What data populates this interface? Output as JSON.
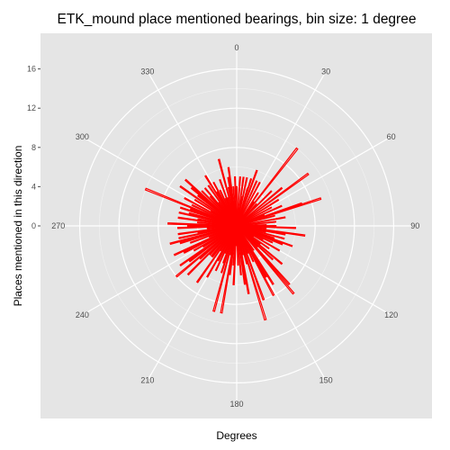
{
  "chart_data": {
    "type": "bar",
    "subtype": "polar-rose",
    "title": "ETK_mound place mentioned bearings, bin size: 1 degree",
    "xlabel": "Degrees",
    "ylabel": "Places mentioned in this direction",
    "radial_ticks": [
      "0",
      "4",
      "8",
      "12",
      "16"
    ],
    "angle_ticks": [
      "0",
      "30",
      "60",
      "90",
      "120",
      "150",
      "180",
      "210",
      "240",
      "270",
      "300",
      "330"
    ],
    "rlim": [
      0,
      18
    ],
    "bin_size_degrees": 1,
    "bar_color": "#ff0000",
    "panel_color": "#e5e5e5",
    "grid_color": "#ffffff",
    "bearings": [
      0,
      4,
      8,
      10,
      12,
      16,
      17,
      20,
      24,
      28,
      33,
      36,
      38,
      42,
      45,
      50,
      54,
      58,
      62,
      66,
      68,
      71,
      72,
      75,
      80,
      84,
      88,
      90,
      92,
      95,
      98,
      100,
      102,
      105,
      108,
      110,
      112,
      115,
      118,
      120,
      122,
      125,
      128,
      130,
      133,
      135,
      138,
      140,
      145,
      148,
      150,
      152,
      155,
      158,
      160,
      163,
      165,
      168,
      170,
      172,
      175,
      178,
      180,
      183,
      185,
      188,
      190,
      192,
      195,
      198,
      200,
      203,
      205,
      208,
      210,
      213,
      215,
      218,
      220,
      223,
      225,
      228,
      230,
      233,
      235,
      238,
      240,
      243,
      245,
      248,
      250,
      253,
      255,
      258,
      260,
      262,
      265,
      268,
      270,
      272,
      275,
      278,
      280,
      283,
      285,
      288,
      290,
      292,
      295,
      298,
      300,
      302,
      305,
      308,
      310,
      312,
      315,
      318,
      320,
      322,
      325,
      328,
      330,
      332,
      335,
      338,
      340,
      342,
      345,
      348,
      350,
      352,
      355,
      358
    ],
    "counts": [
      4,
      5,
      5,
      3,
      5,
      4,
      5,
      6,
      5,
      5,
      4,
      3,
      10,
      3,
      5,
      6,
      9,
      5,
      4,
      5,
      3,
      7,
      9,
      4,
      5,
      4,
      3,
      4,
      6,
      3,
      7,
      5,
      3,
      5,
      4,
      6,
      5,
      4,
      3,
      5,
      2,
      4,
      3,
      6,
      5,
      3,
      8,
      9,
      3,
      7,
      6,
      8,
      4,
      3,
      8,
      10,
      4,
      3,
      7,
      6,
      5,
      4,
      2,
      6,
      4,
      5,
      9,
      3,
      9,
      5,
      4,
      3,
      5,
      4,
      6,
      3,
      7,
      4,
      4,
      4,
      7,
      5,
      8,
      6,
      7,
      4,
      5,
      6,
      7,
      3,
      5,
      6,
      7,
      6,
      4,
      6,
      3,
      6,
      5,
      7,
      4,
      6,
      4,
      6,
      5,
      6,
      5,
      10,
      5,
      6,
      3,
      5,
      7,
      5,
      6,
      7,
      5,
      4,
      5,
      3,
      5,
      6,
      4,
      5,
      4,
      3,
      5,
      3,
      7,
      4,
      5,
      6,
      4,
      5
    ]
  }
}
